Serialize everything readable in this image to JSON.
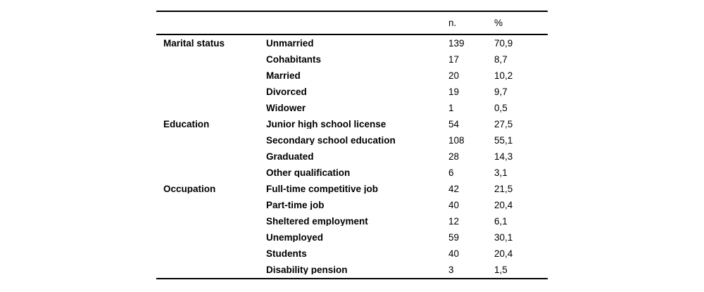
{
  "table": {
    "columns": {
      "category": "",
      "label": "",
      "n": "n.",
      "pct": "%"
    },
    "groups": [
      {
        "category": "Marital status",
        "rows": [
          {
            "label": "Unmarried",
            "n": "139",
            "pct": "70,9"
          },
          {
            "label": "Cohabitants",
            "n": "17",
            "pct": "8,7"
          },
          {
            "label": "Married",
            "n": "20",
            "pct": "10,2"
          },
          {
            "label": "Divorced",
            "n": "19",
            "pct": "9,7"
          },
          {
            "label": "Widower",
            "n": "1",
            "pct": "0,5"
          }
        ]
      },
      {
        "category": "Education",
        "rows": [
          {
            "label": "Junior high school license",
            "n": "54",
            "pct": "27,5"
          },
          {
            "label": "Secondary school education",
            "n": "108",
            "pct": "55,1"
          },
          {
            "label": "Graduated",
            "n": "28",
            "pct": "14,3"
          },
          {
            "label": "Other qualification",
            "n": "6",
            "pct": "3,1"
          }
        ]
      },
      {
        "category": "Occupation",
        "rows": [
          {
            "label": "Full-time competitive job",
            "n": "42",
            "pct": "21,5"
          },
          {
            "label": "Part-time job",
            "n": "40",
            "pct": "20,4"
          },
          {
            "label": "Sheltered employment",
            "n": "12",
            "pct": "6,1"
          },
          {
            "label": "Unemployed",
            "n": "59",
            "pct": "30,1"
          },
          {
            "label": "Students",
            "n": "40",
            "pct": "20,4"
          },
          {
            "label": "Disability pension",
            "n": "3",
            "pct": "1,5"
          }
        ]
      }
    ]
  }
}
